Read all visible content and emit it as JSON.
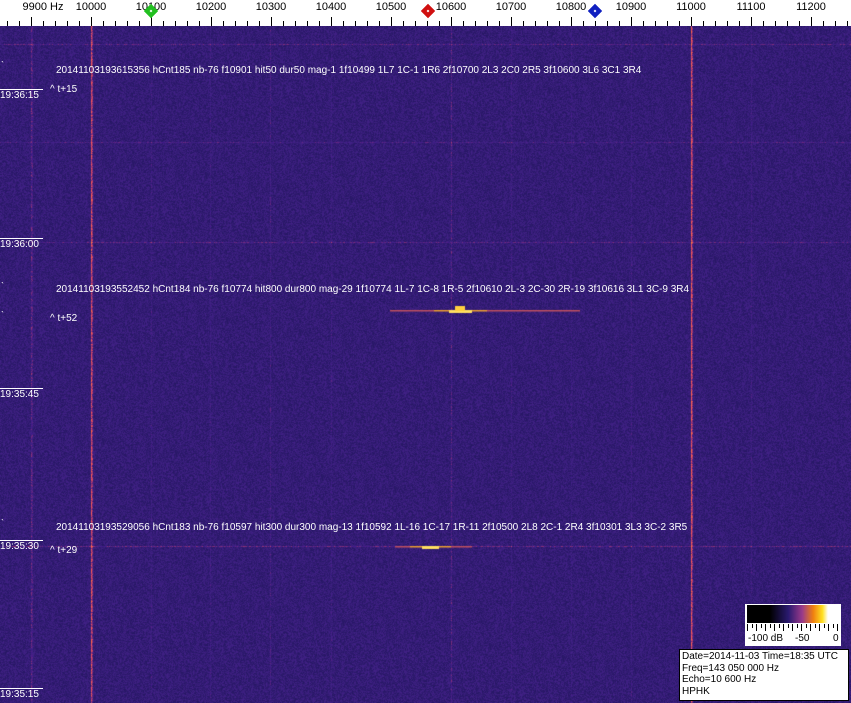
{
  "frequency_scale": {
    "labels": [
      {
        "hz": 9900,
        "text": "9900 Hz"
      },
      {
        "hz": 10000,
        "text": "10000"
      },
      {
        "hz": 10100,
        "text": "10100"
      },
      {
        "hz": 10200,
        "text": "10200"
      },
      {
        "hz": 10300,
        "text": "10300"
      },
      {
        "hz": 10400,
        "text": "10400"
      },
      {
        "hz": 10500,
        "text": "10500"
      },
      {
        "hz": 10600,
        "text": "10600"
      },
      {
        "hz": 10700,
        "text": "10700"
      },
      {
        "hz": 10800,
        "text": "10800"
      },
      {
        "hz": 10900,
        "text": "10900"
      },
      {
        "hz": 11000,
        "text": "11000"
      },
      {
        "hz": 11100,
        "text": "11100"
      },
      {
        "hz": 11200,
        "text": "11200"
      }
    ],
    "markers": [
      {
        "name": "green",
        "hz": 10100,
        "color": "#22c020"
      },
      {
        "name": "red",
        "hz": 10562,
        "color": "#d01010"
      },
      {
        "name": "blue",
        "hz": 10840,
        "color": "#1020c0"
      }
    ]
  },
  "time_labels": [
    "19:36:15",
    "19:36:00",
    "19:35:45",
    "19:35:30",
    "19:35:15"
  ],
  "detections": [
    {
      "text": "20141103193615356 hCnt185 nb-76 f10901 hit50 dur50 mag-1 1f10499 1L7 1C-1 1R6 2f10700 2L3 2C0 2R5 3f10600 3L6 3C1 3R4",
      "offset": "^ t+15"
    },
    {
      "text": "20141103193552452 hCnt184 nb-76 f10774 hit800 dur800 mag-29 1f10774 1L-7 1C-8 1R-5 2f10610 2L-3 2C-30 2R-19 3f10616 3L1 3C-9 3R4",
      "offset": "^ t+52"
    },
    {
      "text": "20141103193529056 hCnt183 nb-76 f10597 hit300 dur300 mag-13 1f10592 1L-16 1C-17 1R-11 2f10500 2L8 2C-1 2R4 3f10301 3L3 3C-2 3R5",
      "offset": "^ t+29"
    }
  ],
  "colorbar": {
    "labels": [
      "-100 dB",
      "-50",
      "0"
    ]
  },
  "info": {
    "datetime": "Date=2014-11-03 Time=18:35 UTC",
    "freq": "Freq=143 050 000 Hz",
    "echo": "Echo=10 600 Hz",
    "station": "HPHK"
  }
}
